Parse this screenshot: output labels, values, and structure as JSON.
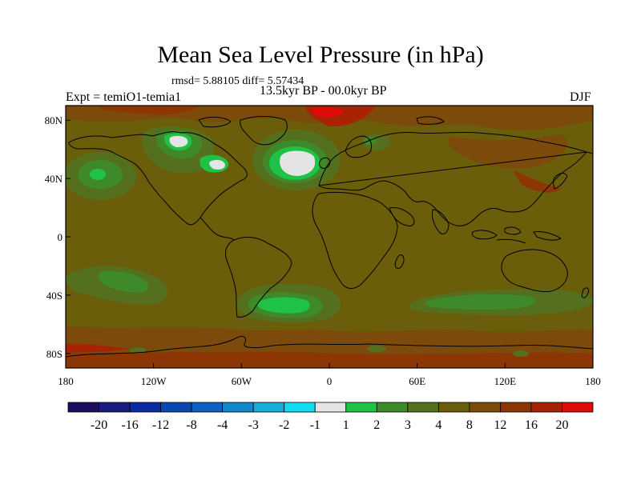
{
  "title": "Mean Sea Level Pressure (in hPa)",
  "stats": "rmsd= 5.88105 diff= 5.57434",
  "period": "13.5kyr BP - 00.0kyr BP",
  "experiment": "Expt = temiO1-temia1",
  "season": "DJF",
  "chart_data": {
    "type": "heatmap",
    "variable": "Mean Sea Level Pressure difference",
    "units": "hPa",
    "x_ticks": [
      {
        "lon": -180,
        "label": "180"
      },
      {
        "lon": -120,
        "label": "120W"
      },
      {
        "lon": -60,
        "label": "60W"
      },
      {
        "lon": 0,
        "label": "0"
      },
      {
        "lon": 60,
        "label": "60E"
      },
      {
        "lon": 120,
        "label": "120E"
      },
      {
        "lon": 180,
        "label": "180"
      }
    ],
    "y_ticks": [
      {
        "lat": 80,
        "label": "80N"
      },
      {
        "lat": 40,
        "label": "40N"
      },
      {
        "lat": 0,
        "label": "0"
      },
      {
        "lat": -40,
        "label": "40S"
      },
      {
        "lat": -80,
        "label": "80S"
      }
    ],
    "xlim": [
      -180,
      180
    ],
    "ylim": [
      -90,
      90
    ],
    "levels": [
      "-20",
      "-16",
      "-12",
      "-8",
      "-4",
      "-3",
      "-2",
      "-1",
      "1",
      "2",
      "3",
      "4",
      "8",
      "12",
      "16",
      "20"
    ],
    "colors": [
      "#1c0e5e",
      "#1a1a80",
      "#0b2ba4",
      "#0b47b0",
      "#0b62c2",
      "#1288cc",
      "#12b0d8",
      "#10dcef",
      "#e4e4e4",
      "#1ec246",
      "#3e8a2a",
      "#54701e",
      "#6a5e0a",
      "#7c4a0a",
      "#8c3606",
      "#a82204",
      "#e00c0c"
    ],
    "background_color": "#6a5e0a",
    "features": [
      {
        "name": "north-atlantic-high",
        "type": "positive-anomaly-max",
        "center_lon": -22,
        "center_lat": 50,
        "value_band": "-1 to 1"
      },
      {
        "name": "great-lakes-ice-sheet-region",
        "type": "positive-anomaly",
        "center_lon": -95,
        "center_lat": 55,
        "value_band": "1 to 2"
      },
      {
        "name": "north-pacific-center",
        "type": "anomaly",
        "center_lon": -165,
        "center_lat": 42,
        "value_band": "1 to 2"
      },
      {
        "name": "south-atlantic-center",
        "type": "anomaly",
        "center_lon": -30,
        "center_lat": -50,
        "value_band": "1 to 2"
      },
      {
        "name": "south-pacific-center",
        "type": "anomaly",
        "center_lon": -135,
        "center_lat": -30,
        "value_band": "2 to 3"
      },
      {
        "name": "southern-indian-ocean-center",
        "type": "anomaly",
        "center_lon": 90,
        "center_lat": -48,
        "value_band": "2 to 3"
      },
      {
        "name": "arctic-high",
        "type": "anomaly",
        "center_lon": 0,
        "center_lat": 85,
        "value_band": "16 to 20"
      },
      {
        "name": "antarctic-belt",
        "type": "anomaly",
        "center_lon": 0,
        "center_lat": -75,
        "value_band": "8 to 12"
      }
    ]
  }
}
